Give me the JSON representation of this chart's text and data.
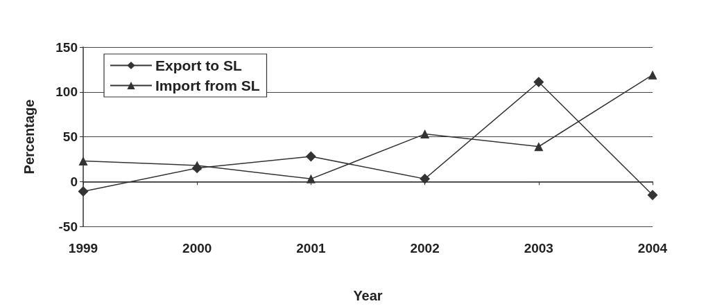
{
  "chart_data": {
    "type": "line",
    "xlabel": "Year",
    "ylabel": "Percentage",
    "categories": [
      "1999",
      "2000",
      "2001",
      "2002",
      "2003",
      "2004"
    ],
    "series": [
      {
        "name": "Export to SL",
        "color": "#333333",
        "marker": "diamond",
        "values": [
          -11,
          15,
          28,
          3,
          111,
          -15
        ]
      },
      {
        "name": "Import from SL",
        "color": "#333333",
        "marker": "triangle",
        "values": [
          23,
          18,
          3,
          53,
          39,
          119
        ]
      }
    ],
    "ylim": [
      -50,
      150
    ],
    "yticks": [
      -50,
      0,
      50,
      100,
      150
    ],
    "grid": "y",
    "legend": "top left",
    "line_style": "solid"
  }
}
